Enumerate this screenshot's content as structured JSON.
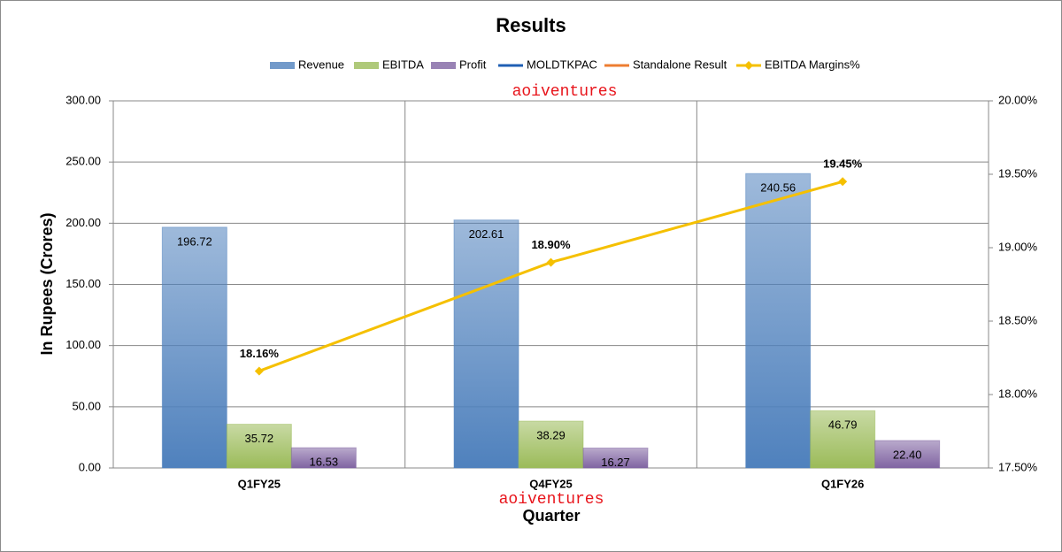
{
  "chart_data": {
    "type": "bar",
    "title": "Results",
    "x_label": "Quarter",
    "y_label": "In Rupees (Crores)",
    "annotations": [
      "aoiventures",
      "aoiventures"
    ],
    "categories": [
      "Q1FY25",
      "Q4FY25",
      "Q1FY26"
    ],
    "series": [
      {
        "name": "Revenue",
        "type": "bar",
        "color": "#4f81bd",
        "values": [
          196.72,
          202.61,
          240.56
        ]
      },
      {
        "name": "EBITDA",
        "type": "bar",
        "color": "#9bbb59",
        "values": [
          35.72,
          38.29,
          46.79
        ]
      },
      {
        "name": "Profit",
        "type": "bar",
        "color": "#8064a2",
        "values": [
          16.53,
          16.27,
          22.4
        ],
        "value_labels": [
          "16.53",
          "16.27",
          "22.40"
        ]
      },
      {
        "name": "MOLDTKPAC",
        "type": "line",
        "color": "#1f5fb4",
        "values": [
          null,
          null,
          null
        ]
      },
      {
        "name": "Standalone Result",
        "type": "line",
        "color": "#ed7d31",
        "values": [
          null,
          null,
          null
        ]
      },
      {
        "name": "EBITDA Margins%",
        "type": "line",
        "axis": "y2",
        "color": "#f5c000",
        "marker": "diamond",
        "values": [
          18.16,
          18.9,
          19.45
        ],
        "value_labels": [
          "18.16%",
          "18.90%",
          "19.45%"
        ]
      }
    ],
    "ylim": [
      0,
      300
    ],
    "yticks": [
      {
        "value": 0,
        "label": "0.00"
      },
      {
        "value": 50,
        "label": "50.00"
      },
      {
        "value": 100,
        "label": "100.00"
      },
      {
        "value": 150,
        "label": "150.00"
      },
      {
        "value": 200,
        "label": "200.00"
      },
      {
        "value": 250,
        "label": "250.00"
      },
      {
        "value": 300,
        "label": "300.00"
      }
    ],
    "y2lim": [
      17.5,
      20
    ],
    "y2ticks": [
      {
        "value": 17.5,
        "label": "17.50%"
      },
      {
        "value": 18,
        "label": "18.00%"
      },
      {
        "value": 18.5,
        "label": "18.50%"
      },
      {
        "value": 19,
        "label": "19.00%"
      },
      {
        "value": 19.5,
        "label": "19.50%"
      },
      {
        "value": 20,
        "label": "20.00%"
      }
    ],
    "grid": true
  }
}
